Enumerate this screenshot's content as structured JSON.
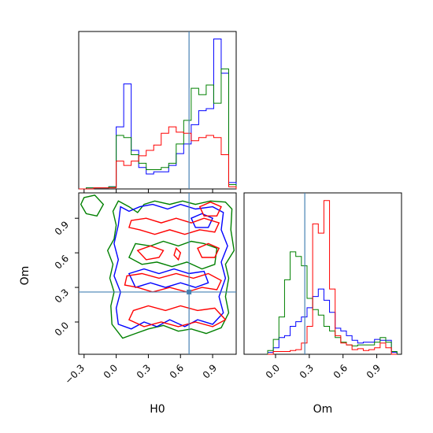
{
  "chart_data": {
    "type": "corner",
    "parameters": [
      "H0",
      "Om"
    ],
    "truth": {
      "H0": 0.68,
      "Om": 0.26
    },
    "truth_color": "#4682b4",
    "colors": {
      "blue": "#0000ff",
      "green": "#008000",
      "red": "#ff0000"
    },
    "panels": [
      {
        "id": "hist-H0",
        "type": "histogram",
        "xlim": [
          -0.35,
          1.12
        ],
        "bin_edges": [
          -0.35,
          -0.28,
          -0.21,
          -0.14,
          -0.07,
          0.0,
          0.07,
          0.14,
          0.21,
          0.28,
          0.35,
          0.42,
          0.49,
          0.56,
          0.63,
          0.7,
          0.77,
          0.84,
          0.91,
          0.98,
          1.05,
          1.12
        ],
        "series": [
          {
            "color": "blue",
            "counts": [
              0,
              1,
              1,
              1,
              2,
              58,
              98,
              36,
              20,
              14,
              16,
              16,
              22,
              33,
              42,
              60,
              73,
              75,
              140,
              108,
              6
            ]
          },
          {
            "color": "green",
            "counts": [
              0,
              1,
              1,
              1,
              2,
              50,
              48,
              32,
              24,
              18,
              18,
              20,
              24,
              42,
              64,
              94,
              88,
              97,
              80,
              112,
              4
            ]
          },
          {
            "color": "red",
            "counts": [
              0,
              0,
              1,
              1,
              1,
              26,
              22,
              26,
              31,
              36,
              41,
              52,
              58,
              53,
              52,
              45,
              48,
              50,
              48,
              32,
              2
            ]
          }
        ]
      },
      {
        "id": "contour-H0-Om",
        "type": "2d-contour",
        "x": "H0",
        "y": "Om",
        "xlim": [
          -0.35,
          1.12
        ],
        "ylim": [
          -0.28,
          1.12
        ],
        "x_ticks": [
          "−0.3",
          "0.0",
          "0.3",
          "0.6",
          "0.9"
        ],
        "y_ticks": [
          "0.0",
          "0.3",
          "0.6",
          "0.9"
        ]
      },
      {
        "id": "hist-Om",
        "type": "histogram",
        "xlim": [
          -0.28,
          1.12
        ],
        "x_ticks": [
          "0.0",
          "0.3",
          "0.6",
          "0.9"
        ],
        "bin_edges": [
          -0.07,
          -0.02,
          0.03,
          0.08,
          0.13,
          0.18,
          0.23,
          0.28,
          0.33,
          0.38,
          0.43,
          0.48,
          0.53,
          0.58,
          0.63,
          0.68,
          0.73,
          0.78,
          0.83,
          0.88,
          0.93,
          0.98,
          1.03,
          1.08
        ],
        "series": [
          {
            "color": "blue",
            "counts": [
              2,
              7,
              18,
              20,
              30,
              35,
              40,
              50,
              62,
              70,
              58,
              45,
              28,
              25,
              20,
              15,
              12,
              13,
              13,
              16,
              15,
              15,
              2
            ]
          },
          {
            "color": "green",
            "counts": [
              4,
              16,
              40,
              80,
              110,
              105,
              95,
              60,
              48,
              42,
              30,
              25,
              18,
              13,
              10,
              9,
              10,
              10,
              10,
              13,
              18,
              13,
              3
            ]
          },
          {
            "color": "red",
            "counts": [
              0,
              3,
              3,
              3,
              4,
              5,
              12,
              30,
              140,
              130,
              165,
              70,
              20,
              12,
              10,
              5,
              6,
              4,
              5,
              7,
              12,
              7,
              0
            ]
          }
        ]
      }
    ],
    "xlabels": {
      "H0": "H0",
      "Om": "Om"
    },
    "ylabels": {
      "Om": "Om"
    }
  }
}
